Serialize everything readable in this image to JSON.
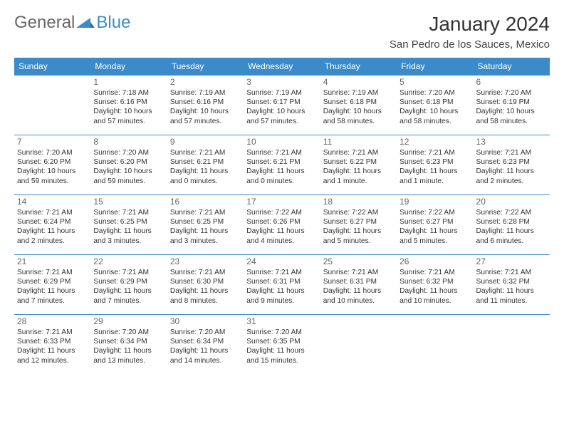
{
  "logo": {
    "text1": "General",
    "text2": "Blue"
  },
  "title": "January 2024",
  "location": "San Pedro de los Sauces, Mexico",
  "colors": {
    "header_bg": "#3b8bc9",
    "header_text": "#ffffff",
    "row_border": "#3b8bc9",
    "page_bg": "#ffffff",
    "body_text": "#333333",
    "daynum_text": "#666666"
  },
  "day_headers": [
    "Sunday",
    "Monday",
    "Tuesday",
    "Wednesday",
    "Thursday",
    "Friday",
    "Saturday"
  ],
  "weeks": [
    [
      {
        "n": "",
        "sr": "",
        "ss": "",
        "dl": ""
      },
      {
        "n": "1",
        "sr": "Sunrise: 7:18 AM",
        "ss": "Sunset: 6:16 PM",
        "dl": "Daylight: 10 hours and 57 minutes."
      },
      {
        "n": "2",
        "sr": "Sunrise: 7:19 AM",
        "ss": "Sunset: 6:16 PM",
        "dl": "Daylight: 10 hours and 57 minutes."
      },
      {
        "n": "3",
        "sr": "Sunrise: 7:19 AM",
        "ss": "Sunset: 6:17 PM",
        "dl": "Daylight: 10 hours and 57 minutes."
      },
      {
        "n": "4",
        "sr": "Sunrise: 7:19 AM",
        "ss": "Sunset: 6:18 PM",
        "dl": "Daylight: 10 hours and 58 minutes."
      },
      {
        "n": "5",
        "sr": "Sunrise: 7:20 AM",
        "ss": "Sunset: 6:18 PM",
        "dl": "Daylight: 10 hours and 58 minutes."
      },
      {
        "n": "6",
        "sr": "Sunrise: 7:20 AM",
        "ss": "Sunset: 6:19 PM",
        "dl": "Daylight: 10 hours and 58 minutes."
      }
    ],
    [
      {
        "n": "7",
        "sr": "Sunrise: 7:20 AM",
        "ss": "Sunset: 6:20 PM",
        "dl": "Daylight: 10 hours and 59 minutes."
      },
      {
        "n": "8",
        "sr": "Sunrise: 7:20 AM",
        "ss": "Sunset: 6:20 PM",
        "dl": "Daylight: 10 hours and 59 minutes."
      },
      {
        "n": "9",
        "sr": "Sunrise: 7:21 AM",
        "ss": "Sunset: 6:21 PM",
        "dl": "Daylight: 11 hours and 0 minutes."
      },
      {
        "n": "10",
        "sr": "Sunrise: 7:21 AM",
        "ss": "Sunset: 6:21 PM",
        "dl": "Daylight: 11 hours and 0 minutes."
      },
      {
        "n": "11",
        "sr": "Sunrise: 7:21 AM",
        "ss": "Sunset: 6:22 PM",
        "dl": "Daylight: 11 hours and 1 minute."
      },
      {
        "n": "12",
        "sr": "Sunrise: 7:21 AM",
        "ss": "Sunset: 6:23 PM",
        "dl": "Daylight: 11 hours and 1 minute."
      },
      {
        "n": "13",
        "sr": "Sunrise: 7:21 AM",
        "ss": "Sunset: 6:23 PM",
        "dl": "Daylight: 11 hours and 2 minutes."
      }
    ],
    [
      {
        "n": "14",
        "sr": "Sunrise: 7:21 AM",
        "ss": "Sunset: 6:24 PM",
        "dl": "Daylight: 11 hours and 2 minutes."
      },
      {
        "n": "15",
        "sr": "Sunrise: 7:21 AM",
        "ss": "Sunset: 6:25 PM",
        "dl": "Daylight: 11 hours and 3 minutes."
      },
      {
        "n": "16",
        "sr": "Sunrise: 7:21 AM",
        "ss": "Sunset: 6:25 PM",
        "dl": "Daylight: 11 hours and 3 minutes."
      },
      {
        "n": "17",
        "sr": "Sunrise: 7:22 AM",
        "ss": "Sunset: 6:26 PM",
        "dl": "Daylight: 11 hours and 4 minutes."
      },
      {
        "n": "18",
        "sr": "Sunrise: 7:22 AM",
        "ss": "Sunset: 6:27 PM",
        "dl": "Daylight: 11 hours and 5 minutes."
      },
      {
        "n": "19",
        "sr": "Sunrise: 7:22 AM",
        "ss": "Sunset: 6:27 PM",
        "dl": "Daylight: 11 hours and 5 minutes."
      },
      {
        "n": "20",
        "sr": "Sunrise: 7:22 AM",
        "ss": "Sunset: 6:28 PM",
        "dl": "Daylight: 11 hours and 6 minutes."
      }
    ],
    [
      {
        "n": "21",
        "sr": "Sunrise: 7:21 AM",
        "ss": "Sunset: 6:29 PM",
        "dl": "Daylight: 11 hours and 7 minutes."
      },
      {
        "n": "22",
        "sr": "Sunrise: 7:21 AM",
        "ss": "Sunset: 6:29 PM",
        "dl": "Daylight: 11 hours and 7 minutes."
      },
      {
        "n": "23",
        "sr": "Sunrise: 7:21 AM",
        "ss": "Sunset: 6:30 PM",
        "dl": "Daylight: 11 hours and 8 minutes."
      },
      {
        "n": "24",
        "sr": "Sunrise: 7:21 AM",
        "ss": "Sunset: 6:31 PM",
        "dl": "Daylight: 11 hours and 9 minutes."
      },
      {
        "n": "25",
        "sr": "Sunrise: 7:21 AM",
        "ss": "Sunset: 6:31 PM",
        "dl": "Daylight: 11 hours and 10 minutes."
      },
      {
        "n": "26",
        "sr": "Sunrise: 7:21 AM",
        "ss": "Sunset: 6:32 PM",
        "dl": "Daylight: 11 hours and 10 minutes."
      },
      {
        "n": "27",
        "sr": "Sunrise: 7:21 AM",
        "ss": "Sunset: 6:32 PM",
        "dl": "Daylight: 11 hours and 11 minutes."
      }
    ],
    [
      {
        "n": "28",
        "sr": "Sunrise: 7:21 AM",
        "ss": "Sunset: 6:33 PM",
        "dl": "Daylight: 11 hours and 12 minutes."
      },
      {
        "n": "29",
        "sr": "Sunrise: 7:20 AM",
        "ss": "Sunset: 6:34 PM",
        "dl": "Daylight: 11 hours and 13 minutes."
      },
      {
        "n": "30",
        "sr": "Sunrise: 7:20 AM",
        "ss": "Sunset: 6:34 PM",
        "dl": "Daylight: 11 hours and 14 minutes."
      },
      {
        "n": "31",
        "sr": "Sunrise: 7:20 AM",
        "ss": "Sunset: 6:35 PM",
        "dl": "Daylight: 11 hours and 15 minutes."
      },
      {
        "n": "",
        "sr": "",
        "ss": "",
        "dl": ""
      },
      {
        "n": "",
        "sr": "",
        "ss": "",
        "dl": ""
      },
      {
        "n": "",
        "sr": "",
        "ss": "",
        "dl": ""
      }
    ]
  ]
}
